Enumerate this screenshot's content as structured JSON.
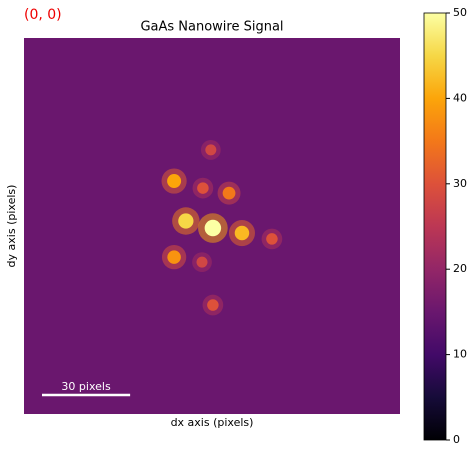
{
  "chart_data": {
    "type": "image",
    "title": "GaAs Nanowire Signal",
    "corner_label": "(0, 0)",
    "xlabel": "dx axis (pixels)",
    "ylabel": "dy axis (pixels)",
    "xlim": [
      0,
      128
    ],
    "ylim": [
      0,
      128
    ],
    "colormap": "inferno",
    "background": 15,
    "spots": [
      {
        "x": 64.3,
        "y": 64.7,
        "value": 50
      },
      {
        "x": 55.1,
        "y": 62.3,
        "value": 45
      },
      {
        "x": 74.2,
        "y": 66.4,
        "value": 42
      },
      {
        "x": 51.1,
        "y": 48.7,
        "value": 40
      },
      {
        "x": 51.1,
        "y": 74.6,
        "value": 38
      },
      {
        "x": 69.8,
        "y": 52.8,
        "value": 35
      },
      {
        "x": 60.9,
        "y": 51.1,
        "value": 30
      },
      {
        "x": 84.4,
        "y": 68.4,
        "value": 30
      },
      {
        "x": 64.3,
        "y": 90.9,
        "value": 30
      },
      {
        "x": 63.6,
        "y": 38.1,
        "value": 28
      },
      {
        "x": 60.6,
        "y": 76.3,
        "value": 28
      }
    ],
    "scale_bar": {
      "length": 30,
      "label": "30 pixels"
    },
    "colorbar": {
      "lim": [
        0,
        50
      ],
      "ticks": [
        0,
        10,
        20,
        30,
        40,
        50
      ]
    }
  }
}
